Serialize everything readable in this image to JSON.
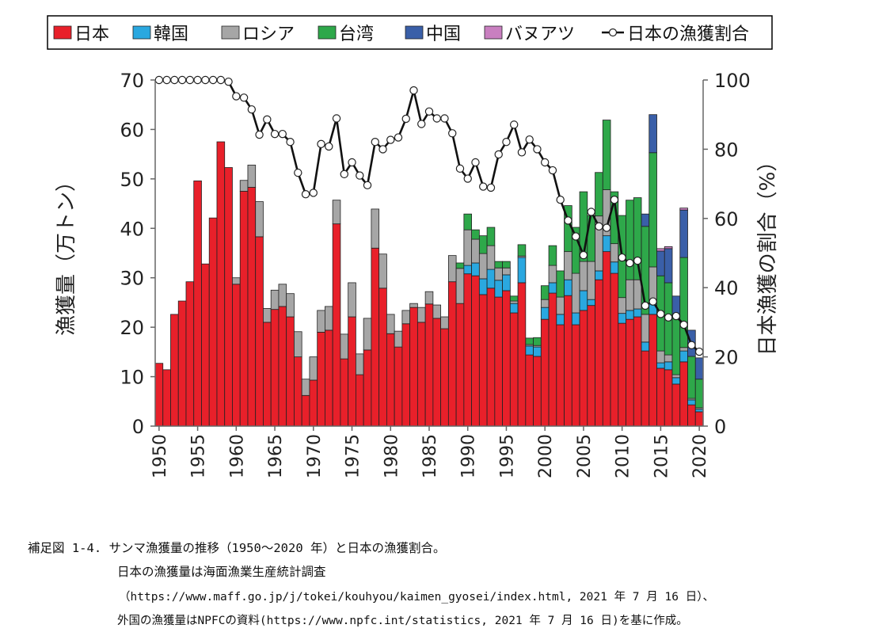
{
  "chart_data": {
    "type": "bar",
    "stacked": true,
    "x": [
      1950,
      1951,
      1952,
      1953,
      1954,
      1955,
      1956,
      1957,
      1958,
      1959,
      1960,
      1961,
      1962,
      1963,
      1964,
      1965,
      1966,
      1967,
      1968,
      1969,
      1970,
      1971,
      1972,
      1973,
      1974,
      1975,
      1976,
      1977,
      1978,
      1979,
      1980,
      1981,
      1982,
      1983,
      1984,
      1985,
      1986,
      1987,
      1988,
      1989,
      1990,
      1991,
      1992,
      1993,
      1994,
      1995,
      1996,
      1997,
      1998,
      1999,
      2000,
      2001,
      2002,
      2003,
      2004,
      2005,
      2006,
      2007,
      2008,
      2009,
      2010,
      2011,
      2012,
      2013,
      2014,
      2015,
      2016,
      2017,
      2018,
      2019,
      2020
    ],
    "series": [
      {
        "name": "日本",
        "color": "#e8202a",
        "values": [
          12.7,
          11.4,
          22.6,
          25.3,
          29.2,
          49.6,
          32.8,
          42.1,
          57.5,
          52.3,
          28.7,
          47.5,
          48.3,
          38.3,
          21.0,
          23.6,
          24.2,
          22.1,
          14.0,
          6.2,
          9.3,
          19.0,
          19.4,
          40.9,
          13.6,
          22.1,
          10.4,
          15.4,
          36.0,
          27.9,
          18.7,
          16.0,
          20.7,
          24.0,
          21.0,
          24.7,
          21.8,
          19.7,
          29.2,
          24.8,
          30.8,
          30.4,
          26.6,
          27.9,
          26.1,
          27.4,
          22.9,
          29.0,
          14.4,
          14.1,
          21.6,
          26.9,
          20.5,
          26.4,
          20.5,
          23.4,
          24.4,
          29.6,
          35.3,
          30.9,
          20.8,
          21.6,
          22.1,
          15.2,
          22.6,
          11.7,
          11.4,
          8.5,
          13.0,
          4.3,
          2.9
        ]
      },
      {
        "name": "韓国",
        "color": "#2aa8e0",
        "values": [
          0,
          0,
          0,
          0,
          0,
          0,
          0,
          0,
          0,
          0,
          0,
          0,
          0,
          0,
          0,
          0,
          0,
          0,
          0,
          0,
          0,
          0,
          0,
          0,
          0,
          0,
          0,
          0,
          0,
          0,
          0,
          0,
          0,
          0,
          0,
          0,
          0,
          0,
          0,
          0,
          1.7,
          2.6,
          3.2,
          3.8,
          3.4,
          3.2,
          1.9,
          5.1,
          1.8,
          1.9,
          2.4,
          2.1,
          2.1,
          3.2,
          2.4,
          4.0,
          1.2,
          1.8,
          3.2,
          2.3,
          2.0,
          1.8,
          1.6,
          1.8,
          2.2,
          1.1,
          1.6,
          1.3,
          2.2,
          1.0,
          0.5
        ]
      },
      {
        "name": "ロシア",
        "color": "#a6a6a6",
        "values": [
          0,
          0,
          0,
          0,
          0,
          0,
          0,
          0,
          0,
          0,
          1.3,
          2.2,
          4.5,
          7.1,
          2.8,
          3.9,
          4.5,
          4.7,
          5.1,
          3.3,
          4.7,
          4.4,
          4.8,
          4.8,
          5.0,
          6.9,
          4.2,
          6.4,
          7.9,
          6.9,
          3.9,
          3.2,
          2.7,
          0.8,
          3.0,
          2.5,
          2.7,
          2.4,
          5.3,
          7.1,
          7.2,
          4.8,
          5.1,
          4.8,
          2.5,
          1.4,
          0.5,
          0.3,
          0.3,
          0.3,
          1.6,
          3.5,
          3.5,
          5.7,
          8.0,
          5.9,
          7.7,
          11.1,
          9.3,
          3.7,
          3.2,
          6.2,
          5.9,
          5.6,
          7.4,
          2.4,
          1.4,
          0.6,
          0.7,
          0.3,
          0.3
        ]
      },
      {
        "name": "台湾",
        "color": "#2ea84a",
        "values": [
          0,
          0,
          0,
          0,
          0,
          0,
          0,
          0,
          0,
          0,
          0,
          0,
          0,
          0,
          0,
          0,
          0,
          0,
          0,
          0,
          0,
          0,
          0,
          0,
          0,
          0,
          0,
          0,
          0,
          0,
          0,
          0,
          0,
          0,
          0,
          0,
          0,
          0,
          0,
          1.1,
          3.2,
          1.9,
          3.6,
          3.7,
          1.3,
          1.3,
          1.0,
          2.3,
          1.3,
          1.6,
          2.8,
          4.0,
          5.3,
          9.3,
          9.3,
          14.1,
          9.3,
          8.8,
          14.1,
          10.5,
          16.6,
          16.1,
          16.6,
          17.8,
          23.1,
          15.2,
          14.6,
          11.7,
          18.2,
          8.5,
          5.8
        ]
      },
      {
        "name": "中国",
        "color": "#3a5fa8",
        "values": [
          0,
          0,
          0,
          0,
          0,
          0,
          0,
          0,
          0,
          0,
          0,
          0,
          0,
          0,
          0,
          0,
          0,
          0,
          0,
          0,
          0,
          0,
          0,
          0,
          0,
          0,
          0,
          0,
          0,
          0,
          0,
          0,
          0,
          0,
          0,
          0,
          0,
          0,
          0,
          0,
          0,
          0,
          0,
          0,
          0,
          0,
          0,
          0,
          0,
          0,
          0,
          0,
          0,
          0,
          0,
          0,
          0,
          0,
          0,
          0,
          0,
          0,
          0,
          2.5,
          7.7,
          5.0,
          6.9,
          4.2,
          9.6,
          5.3,
          4.3
        ]
      },
      {
        "name": "バヌアツ",
        "color": "#c97fc0",
        "values": [
          0,
          0,
          0,
          0,
          0,
          0,
          0,
          0,
          0,
          0,
          0,
          0,
          0,
          0,
          0,
          0,
          0,
          0,
          0,
          0,
          0,
          0,
          0,
          0,
          0,
          0,
          0,
          0,
          0,
          0,
          0,
          0,
          0,
          0,
          0,
          0,
          0,
          0,
          0,
          0,
          0,
          0,
          0,
          0,
          0,
          0,
          0,
          0,
          0,
          0,
          0,
          0,
          0,
          0,
          0,
          0,
          0,
          0,
          0,
          0,
          0,
          0,
          0,
          0,
          0,
          0.5,
          0.4,
          0,
          0.4,
          0,
          0
        ]
      }
    ],
    "line_series": {
      "name": "日本の漁獲割合",
      "type": "line",
      "axis": "right",
      "color": "#000000",
      "values": [
        100,
        100,
        100,
        100,
        100,
        100,
        100,
        100,
        100,
        99.5,
        95.3,
        94.9,
        91.5,
        84.2,
        88.6,
        84.4,
        84.4,
        82.1,
        73.2,
        67.0,
        67.4,
        81.5,
        80.8,
        88.9,
        72.8,
        76.2,
        72.4,
        69.6,
        82.1,
        80.0,
        82.7,
        83.4,
        88.8,
        97.0,
        87.3,
        90.9,
        88.9,
        88.9,
        84.6,
        74.4,
        71.5,
        76.2,
        69.2,
        68.9,
        78.5,
        82.1,
        87.1,
        79.1,
        82.8,
        80.0,
        76.2,
        73.9,
        65.4,
        59.4,
        54.8,
        49.4,
        61.9,
        57.7,
        57.3,
        65.4,
        48.7,
        47.1,
        47.8,
        34.8,
        36.0,
        32.4,
        31.4,
        31.8,
        29.3,
        23.4,
        21.5
      ]
    },
    "ylabel": "漁獲量（万トン）",
    "ylabel_right": "日本漁獲の割合（%）",
    "ylim": [
      0,
      70
    ],
    "ylim_right": [
      0,
      100
    ],
    "yticks": [
      "0",
      "10",
      "20",
      "30",
      "40",
      "50",
      "60",
      "70"
    ],
    "yticks_right": [
      "0",
      "20",
      "40",
      "60",
      "80",
      "100"
    ],
    "xticks": [
      "1950",
      "1955",
      "1960",
      "1965",
      "1970",
      "1975",
      "1980",
      "1985",
      "1990",
      "1995",
      "2000",
      "2005",
      "2010",
      "2015",
      "2020"
    ],
    "legend_position": "top",
    "grid": false
  },
  "caption": {
    "line1": "補足図 1-4. サンマ漁獲量の推移（1950～2020 年）と日本の漁獲割合。",
    "line2": "日本の漁獲量は海面漁業生産統計調査",
    "line3": "（https://www.maff.go.jp/j/tokei/kouhyou/kaimen_gyosei/index.html, 2021 年 7 月 16 日）、",
    "line4": "外国の漁獲量はNPFCの資料(https://www.npfc.int/statistics, 2021 年 7 月 16 日)を基に作成。"
  }
}
